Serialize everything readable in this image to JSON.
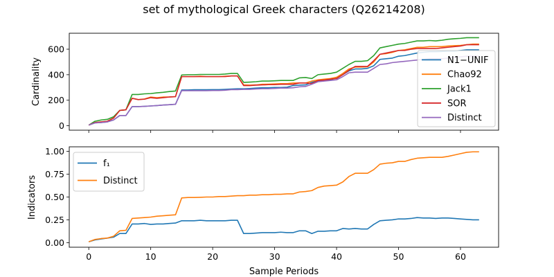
{
  "chart_data": [
    {
      "type": "line",
      "title": "set of mythological Greek characters (Q26214208)",
      "xlabel": "",
      "ylabel": "Cardinality",
      "xlim": [
        -3.15,
        66.15
      ],
      "ylim": [
        -35,
        725
      ],
      "xticks": [
        0,
        10,
        20,
        30,
        40,
        50,
        60
      ],
      "yticks": [
        0,
        200,
        400,
        600
      ],
      "grid": false,
      "legend": "lower-right",
      "x": [
        0,
        1,
        2,
        3,
        4,
        5,
        6,
        7,
        8,
        9,
        10,
        11,
        12,
        13,
        14,
        15,
        16,
        17,
        18,
        19,
        20,
        21,
        22,
        23,
        24,
        25,
        26,
        27,
        28,
        29,
        30,
        31,
        32,
        33,
        34,
        35,
        36,
        37,
        38,
        39,
        40,
        41,
        42,
        43,
        44,
        45,
        46,
        47,
        48,
        49,
        50,
        51,
        52,
        53,
        54,
        55,
        56,
        57,
        58,
        59,
        60,
        61,
        62,
        63
      ],
      "series": [
        {
          "name": "N1−UNIF",
          "color": "#1f77b4",
          "values": [
            5,
            22,
            25,
            30,
            45,
            80,
            80,
            150,
            150,
            152,
            155,
            158,
            162,
            165,
            168,
            280,
            280,
            282,
            282,
            282,
            283,
            283,
            285,
            288,
            290,
            290,
            292,
            295,
            298,
            298,
            300,
            300,
            302,
            315,
            318,
            320,
            340,
            352,
            355,
            360,
            375,
            400,
            430,
            445,
            445,
            450,
            470,
            520,
            525,
            530,
            545,
            550,
            560,
            570,
            575,
            580,
            580,
            582,
            585,
            585,
            590,
            595,
            595,
            595
          ]
        },
        {
          "name": "Chao92",
          "color": "#ff7f0e",
          "values": [
            5,
            25,
            30,
            35,
            60,
            120,
            125,
            215,
            205,
            210,
            225,
            220,
            225,
            225,
            228,
            385,
            385,
            385,
            388,
            385,
            385,
            385,
            388,
            390,
            390,
            320,
            318,
            320,
            325,
            326,
            328,
            330,
            330,
            335,
            335,
            335,
            350,
            360,
            365,
            370,
            380,
            410,
            445,
            460,
            460,
            462,
            500,
            560,
            565,
            575,
            590,
            595,
            605,
            615,
            615,
            620,
            620,
            620,
            625,
            628,
            630,
            635,
            640,
            640
          ]
        },
        {
          "name": "Jack1",
          "color": "#2ca02c",
          "values": [
            5,
            35,
            45,
            50,
            70,
            120,
            125,
            245,
            245,
            250,
            252,
            258,
            262,
            268,
            272,
            398,
            400,
            400,
            402,
            402,
            402,
            402,
            405,
            410,
            410,
            340,
            342,
            345,
            350,
            350,
            352,
            355,
            355,
            355,
            375,
            378,
            370,
            400,
            405,
            410,
            420,
            450,
            480,
            505,
            505,
            510,
            550,
            610,
            620,
            630,
            640,
            645,
            655,
            665,
            665,
            668,
            665,
            670,
            678,
            682,
            685,
            690,
            690,
            690
          ]
        },
        {
          "name": "SOR",
          "color": "#d62728",
          "values": [
            5,
            25,
            30,
            35,
            60,
            120,
            125,
            215,
            205,
            208,
            220,
            215,
            220,
            225,
            228,
            385,
            385,
            385,
            385,
            385,
            385,
            385,
            385,
            390,
            390,
            315,
            315,
            318,
            320,
            322,
            322,
            325,
            325,
            325,
            335,
            335,
            330,
            355,
            358,
            365,
            370,
            400,
            435,
            465,
            465,
            465,
            510,
            560,
            570,
            580,
            590,
            590,
            600,
            605,
            605,
            605,
            605,
            610,
            615,
            620,
            625,
            635,
            635,
            635
          ]
        },
        {
          "name": "Distinct",
          "color": "#9467bd",
          "values": [
            5,
            22,
            25,
            30,
            45,
            80,
            80,
            150,
            150,
            152,
            155,
            158,
            162,
            165,
            168,
            275,
            275,
            275,
            275,
            275,
            276,
            276,
            278,
            283,
            283,
            285,
            285,
            288,
            290,
            290,
            292,
            295,
            295,
            298,
            305,
            308,
            325,
            345,
            350,
            355,
            360,
            385,
            415,
            420,
            420,
            420,
            450,
            480,
            485,
            495,
            500,
            505,
            510,
            515,
            520,
            525,
            525,
            525,
            530,
            535,
            540,
            545,
            545,
            545
          ]
        }
      ]
    },
    {
      "type": "line",
      "title": "",
      "xlabel": "Sample Periods",
      "ylabel": "Indicators",
      "xlim": [
        -3.15,
        66.15
      ],
      "ylim": [
        -0.05,
        1.05
      ],
      "xticks": [
        0,
        10,
        20,
        30,
        40,
        50,
        60
      ],
      "yticks": [
        0.0,
        0.25,
        0.5,
        0.75,
        1.0
      ],
      "ytick_labels": [
        "0.00",
        "0.25",
        "0.50",
        "0.75",
        "1.00"
      ],
      "grid": false,
      "legend": "upper-left",
      "x": [
        0,
        1,
        2,
        3,
        4,
        5,
        6,
        7,
        8,
        9,
        10,
        11,
        12,
        13,
        14,
        15,
        16,
        17,
        18,
        19,
        20,
        21,
        22,
        23,
        24,
        25,
        26,
        27,
        28,
        29,
        30,
        31,
        32,
        33,
        34,
        35,
        36,
        37,
        38,
        39,
        40,
        41,
        42,
        43,
        44,
        45,
        46,
        47,
        48,
        49,
        50,
        51,
        52,
        53,
        54,
        55,
        56,
        57,
        58,
        59,
        60,
        61,
        62,
        63
      ],
      "series": [
        {
          "name": "f₁",
          "color": "#1f77b4",
          "values": [
            0.01,
            0.03,
            0.04,
            0.05,
            0.06,
            0.1,
            0.1,
            0.205,
            0.205,
            0.21,
            0.2,
            0.205,
            0.205,
            0.21,
            0.215,
            0.24,
            0.24,
            0.24,
            0.245,
            0.24,
            0.24,
            0.24,
            0.24,
            0.245,
            0.245,
            0.1,
            0.1,
            0.105,
            0.11,
            0.11,
            0.11,
            0.115,
            0.11,
            0.11,
            0.13,
            0.13,
            0.1,
            0.125,
            0.125,
            0.13,
            0.13,
            0.155,
            0.15,
            0.155,
            0.15,
            0.15,
            0.2,
            0.24,
            0.245,
            0.25,
            0.26,
            0.26,
            0.265,
            0.275,
            0.27,
            0.27,
            0.265,
            0.27,
            0.27,
            0.265,
            0.26,
            0.255,
            0.25,
            0.25
          ]
        },
        {
          "name": "Distinct",
          "color": "#ff7f0e",
          "values": [
            0.01,
            0.035,
            0.045,
            0.05,
            0.07,
            0.13,
            0.135,
            0.265,
            0.27,
            0.275,
            0.28,
            0.29,
            0.295,
            0.3,
            0.305,
            0.49,
            0.495,
            0.495,
            0.497,
            0.5,
            0.5,
            0.505,
            0.505,
            0.51,
            0.515,
            0.515,
            0.52,
            0.52,
            0.525,
            0.525,
            0.53,
            0.53,
            0.535,
            0.535,
            0.555,
            0.56,
            0.57,
            0.605,
            0.62,
            0.625,
            0.63,
            0.665,
            0.725,
            0.76,
            0.76,
            0.76,
            0.8,
            0.86,
            0.87,
            0.875,
            0.89,
            0.89,
            0.91,
            0.925,
            0.93,
            0.935,
            0.935,
            0.935,
            0.945,
            0.96,
            0.975,
            0.99,
            0.995,
            0.995
          ]
        }
      ]
    }
  ]
}
